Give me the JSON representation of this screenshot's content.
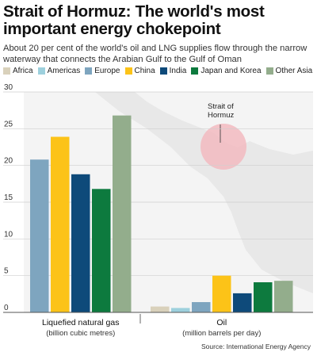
{
  "title": "Strait of Hormuz: The world's most important energy chokepoint",
  "subtitle": "About 20 per cent of the world's oil and LNG supplies flow through the narrow waterway that connects the Arabian Gulf to the Gulf of Oman",
  "source": "Source: International Energy Agency",
  "map_annotation": "Strait of\nHormuz",
  "legend": [
    {
      "name": "Africa",
      "color": "#d9d1bb"
    },
    {
      "name": "Americas",
      "color": "#9dd0dd"
    },
    {
      "name": "Europe",
      "color": "#7ea5bf"
    },
    {
      "name": "China",
      "color": "#fcc318"
    },
    {
      "name": "India",
      "color": "#0e4a7a"
    },
    {
      "name": "Japan and Korea",
      "color": "#0d7a3e"
    },
    {
      "name": "Other Asia",
      "color": "#93ad8c"
    }
  ],
  "chart_data": {
    "type": "bar",
    "ylim": [
      0,
      30
    ],
    "yticks": [
      0,
      5,
      10,
      15,
      20,
      25,
      30
    ],
    "grid": true,
    "groups": [
      {
        "label": "Liquefied natural gas",
        "sublabel": "(billion cubic metres)",
        "series": [
          {
            "name": "Europe",
            "value": 20.8
          },
          {
            "name": "China",
            "value": 23.9
          },
          {
            "name": "India",
            "value": 18.8
          },
          {
            "name": "Japan and Korea",
            "value": 16.8
          },
          {
            "name": "Other Asia",
            "value": 26.8
          }
        ]
      },
      {
        "label": "Oil",
        "sublabel": "(million barrels per day)",
        "series": [
          {
            "name": "Africa",
            "value": 0.8
          },
          {
            "name": "Americas",
            "value": 0.6
          },
          {
            "name": "Europe",
            "value": 1.4
          },
          {
            "name": "China",
            "value": 5.0
          },
          {
            "name": "India",
            "value": 2.6
          },
          {
            "name": "Japan and Korea",
            "value": 4.1
          },
          {
            "name": "Other Asia",
            "value": 4.3
          }
        ]
      }
    ]
  }
}
